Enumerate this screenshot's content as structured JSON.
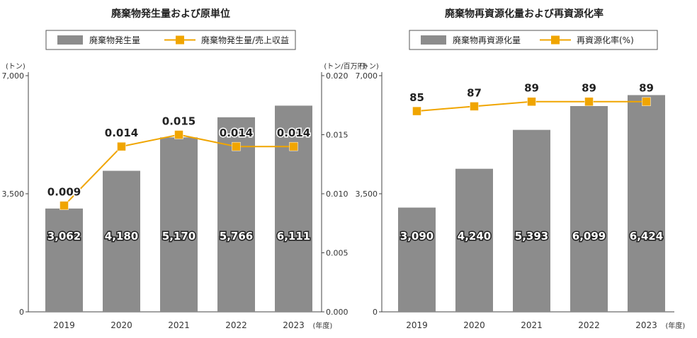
{
  "chart_data": [
    {
      "type": "bar+line",
      "title": "廃棄物発生量および原単位",
      "categories": [
        "2019",
        "2020",
        "2021",
        "2022",
        "2023"
      ],
      "x_suffix": "(年度)",
      "y_left_unit": "(トン)",
      "y_right_unit": "(トン/百万円)",
      "y_left_ticks": [
        "0",
        "3,500",
        "7,000"
      ],
      "y_right_ticks": [
        "0.000",
        "0.005",
        "0.010",
        "0.015",
        "0.020"
      ],
      "ylim_left": [
        0,
        7000
      ],
      "ylim_right": [
        0,
        0.02
      ],
      "series": [
        {
          "name": "廃棄物発生量",
          "kind": "bar",
          "axis": "left",
          "color": "#8c8c8c",
          "values": [
            3062,
            4180,
            5170,
            5766,
            6111
          ],
          "labels": [
            "3,062",
            "4,180",
            "5,170",
            "5,766",
            "6,111"
          ]
        },
        {
          "name": "廃棄物発生量/売上収益",
          "kind": "line",
          "axis": "right",
          "color": "#f0a500",
          "values": [
            0.009,
            0.014,
            0.015,
            0.014,
            0.014
          ],
          "labels": [
            "0.009",
            "0.014",
            "0.015",
            "0.014",
            "0.014"
          ]
        }
      ]
    },
    {
      "type": "bar+line",
      "title": "廃棄物再資源化量および再資源化率",
      "categories": [
        "2019",
        "2020",
        "2021",
        "2022",
        "2023"
      ],
      "x_suffix": "(年度)",
      "y_left_unit": "(トン)",
      "y_left_ticks": [
        "0",
        "3,500",
        "7,000"
      ],
      "ylim_left": [
        0,
        7000
      ],
      "ylim_line": [
        0,
        100
      ],
      "series": [
        {
          "name": "廃棄物再資源化量",
          "kind": "bar",
          "axis": "left",
          "color": "#8c8c8c",
          "values": [
            3090,
            4240,
            5393,
            6099,
            6424
          ],
          "labels": [
            "3,090",
            "4,240",
            "5,393",
            "6,099",
            "6,424"
          ]
        },
        {
          "name": "再資源化率(%)",
          "kind": "line",
          "axis": "hidden",
          "color": "#f0a500",
          "values": [
            85,
            87,
            89,
            89,
            89
          ],
          "labels": [
            "85",
            "87",
            "89",
            "89",
            "89"
          ]
        }
      ]
    }
  ]
}
